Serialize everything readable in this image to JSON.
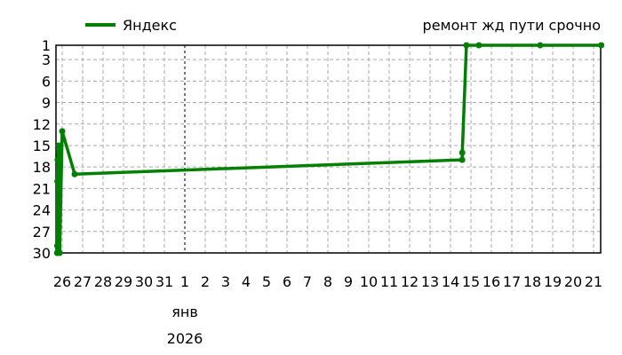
{
  "chart_data": {
    "type": "line",
    "title": "ремонт жд пути срочно",
    "legend": {
      "position": "top-left",
      "entries": [
        "Яндекс"
      ]
    },
    "y_reversed": true,
    "ylim": [
      1,
      30
    ],
    "yticks": [
      1,
      3,
      6,
      9,
      12,
      15,
      18,
      21,
      24,
      27,
      30
    ],
    "xlim": [
      "2025-12-25T18:00",
      "2026-01-21T09:00"
    ],
    "xtick_labels": [
      "26",
      "27",
      "28",
      "29",
      "30",
      "31",
      "1",
      "2",
      "3",
      "4",
      "5",
      "6",
      "7",
      "8",
      "9",
      "10",
      "11",
      "12",
      "13",
      "14",
      "15",
      "16",
      "17",
      "18",
      "19",
      "20",
      "21"
    ],
    "x_month_label": "янв",
    "x_year_label": "2026",
    "marker_date": "2026-01-01",
    "grid": true,
    "color": "#008000",
    "series": [
      {
        "name": "Яндекс",
        "points": [
          [
            "2025-12-25T18:00",
            30
          ],
          [
            "2025-12-25T18:10",
            29
          ],
          [
            "2025-12-25T18:20",
            20
          ],
          [
            "2025-12-25T18:40",
            17
          ],
          [
            "2025-12-25T20:00",
            15
          ],
          [
            "2025-12-25T21:00",
            30
          ],
          [
            "2025-12-26T00:00",
            13
          ],
          [
            "2025-12-26T14:40",
            19
          ],
          [
            "2026-01-14T13:40",
            17
          ],
          [
            "2026-01-14T13:50",
            16
          ],
          [
            "2026-01-14T18:40",
            1
          ],
          [
            "2026-01-15T09:20",
            1
          ],
          [
            "2026-01-18T09:20",
            1
          ],
          [
            "2026-01-21T09:00",
            1
          ]
        ]
      }
    ]
  }
}
